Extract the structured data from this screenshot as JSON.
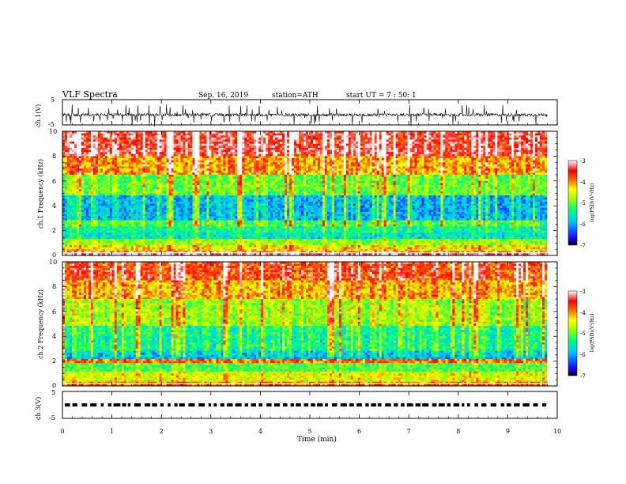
{
  "header": {
    "title": "VLF Spectra",
    "date": "Sep. 16, 2019",
    "station": "station=ATH",
    "start": "start UT = 7 : 50: 1"
  },
  "chart_data": [
    {
      "type": "line",
      "panel": "ch1-waveform",
      "ylabel": "ch.1(V)",
      "ylim": [
        -5,
        5
      ],
      "yticks": [
        "5",
        "-5"
      ],
      "xlim": [
        0,
        10
      ],
      "series": [
        {
          "values_note": "noise waveform centred near -1 V with spikes to about +1.5 V / -3 V"
        }
      ]
    },
    {
      "type": "heatmap",
      "panel": "ch1-spectrogram",
      "ylabel": "ch.1 Frequency (kHz)",
      "ylim": [
        0,
        10
      ],
      "yticks": [
        "0",
        "2",
        "4",
        "6",
        "8",
        "10"
      ],
      "xlim": [
        0,
        9.8
      ],
      "color_scale": {
        "label": "log(PSD)(V²/Hz)",
        "range": [
          -7,
          -3
        ],
        "ticks": [
          "-3",
          "-4",
          "-5",
          "-6",
          "-7"
        ]
      },
      "bands_kHz_logPSD": [
        [
          0,
          0.3,
          -3.3
        ],
        [
          0.3,
          0.8,
          -4.4
        ],
        [
          0.8,
          1.3,
          -4.9
        ],
        [
          1.3,
          1.8,
          -5.7
        ],
        [
          1.8,
          2.3,
          -5.5
        ],
        [
          2.3,
          2.9,
          -5.3
        ],
        [
          2.9,
          4.9,
          -6.1
        ],
        [
          4.9,
          6.5,
          -5.2
        ],
        [
          6.5,
          8.0,
          -4.3
        ],
        [
          8.0,
          10.0,
          -3.6
        ]
      ]
    },
    {
      "type": "heatmap",
      "panel": "ch2-spectrogram",
      "ylabel": "ch.2 Frequency (kHz)",
      "ylim": [
        0,
        10
      ],
      "yticks": [
        "0",
        "2",
        "4",
        "6",
        "8",
        "10"
      ],
      "xlim": [
        0,
        9.8
      ],
      "color_scale": {
        "label": "log(PSD)(V²/Hz)",
        "range": [
          -7,
          -3
        ],
        "ticks": [
          "-3",
          "-4",
          "-5",
          "-6",
          "-7"
        ]
      },
      "bands_kHz_logPSD": [
        [
          0,
          0.3,
          -4.0
        ],
        [
          0.3,
          1.2,
          -4.6
        ],
        [
          1.2,
          1.9,
          -5.2
        ],
        [
          1.9,
          2.2,
          -4.0
        ],
        [
          2.2,
          2.8,
          -6.0
        ],
        [
          2.8,
          4.8,
          -5.6
        ],
        [
          4.8,
          7.0,
          -5.0
        ],
        [
          7.0,
          8.5,
          -4.4
        ],
        [
          8.5,
          10.0,
          -3.9
        ]
      ]
    },
    {
      "type": "line",
      "panel": "ch3-waveform",
      "ylabel": "ch.3(V)",
      "ylim": [
        -5,
        5
      ],
      "yticks": [
        "5",
        "-5"
      ],
      "xlabel": "Time (min)",
      "xlim": [
        0,
        10
      ],
      "xticks": [
        "0",
        "1",
        "2",
        "3",
        "4",
        "5",
        "6",
        "7",
        "8",
        "9",
        "10"
      ],
      "series": [
        {
          "values_note": "dashed pulse train near 0 V"
        }
      ]
    }
  ],
  "colors": {
    "colormap": [
      "#000000",
      "#1a00ff",
      "#00c8ff",
      "#00ff7a",
      "#9cff00",
      "#ffff00",
      "#ff6000",
      "#ff0000",
      "#ffffff"
    ],
    "axis": "#000000"
  }
}
